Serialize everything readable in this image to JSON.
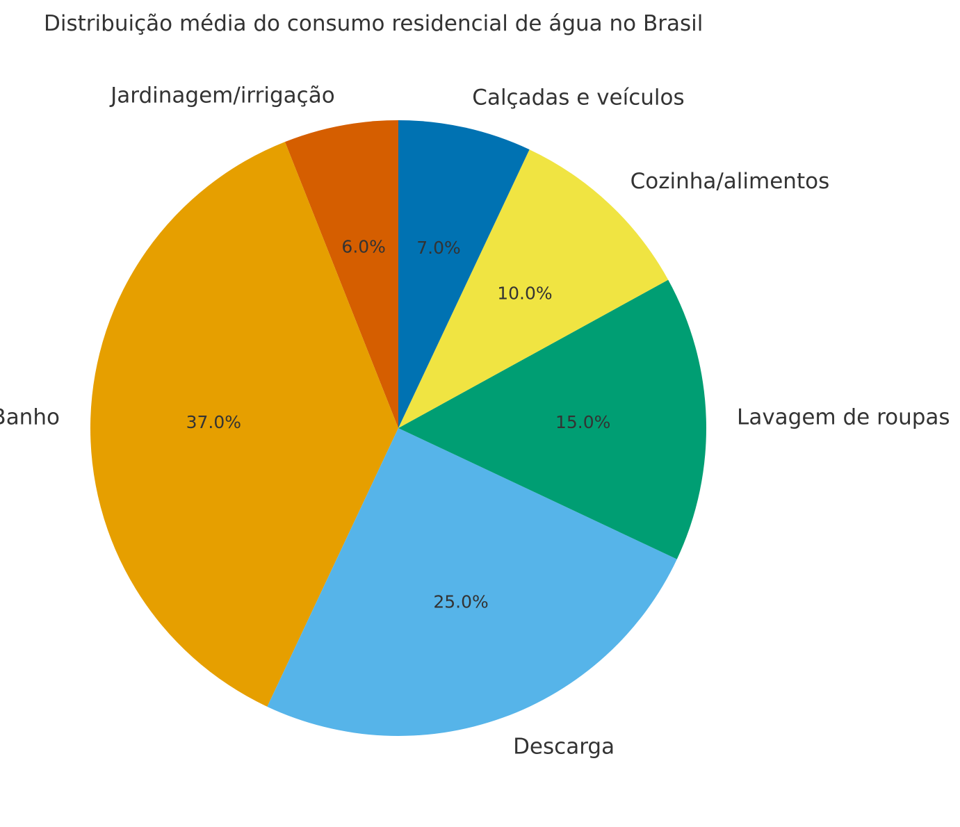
{
  "chart_data": {
    "type": "pie",
    "title": "Distribuição média do consumo residencial de água no Brasil",
    "start_angle_deg": 90,
    "direction": "counterclockwise",
    "categories": [
      "Jardinagem/irrigação",
      "Banho",
      "Descarga",
      "Lavagem de roupas",
      "Cozinha/alimentos",
      "Calçadas e veículos"
    ],
    "values": [
      6.0,
      37.0,
      25.0,
      15.0,
      10.0,
      7.0
    ],
    "value_labels": [
      "6.0%",
      "37.0%",
      "25.0%",
      "15.0%",
      "10.0%",
      "7.0%"
    ],
    "colors": [
      "#D55E00",
      "#E69F00",
      "#56B4E9",
      "#009E73",
      "#F0E442",
      "#0072B2"
    ],
    "legend": "none"
  }
}
